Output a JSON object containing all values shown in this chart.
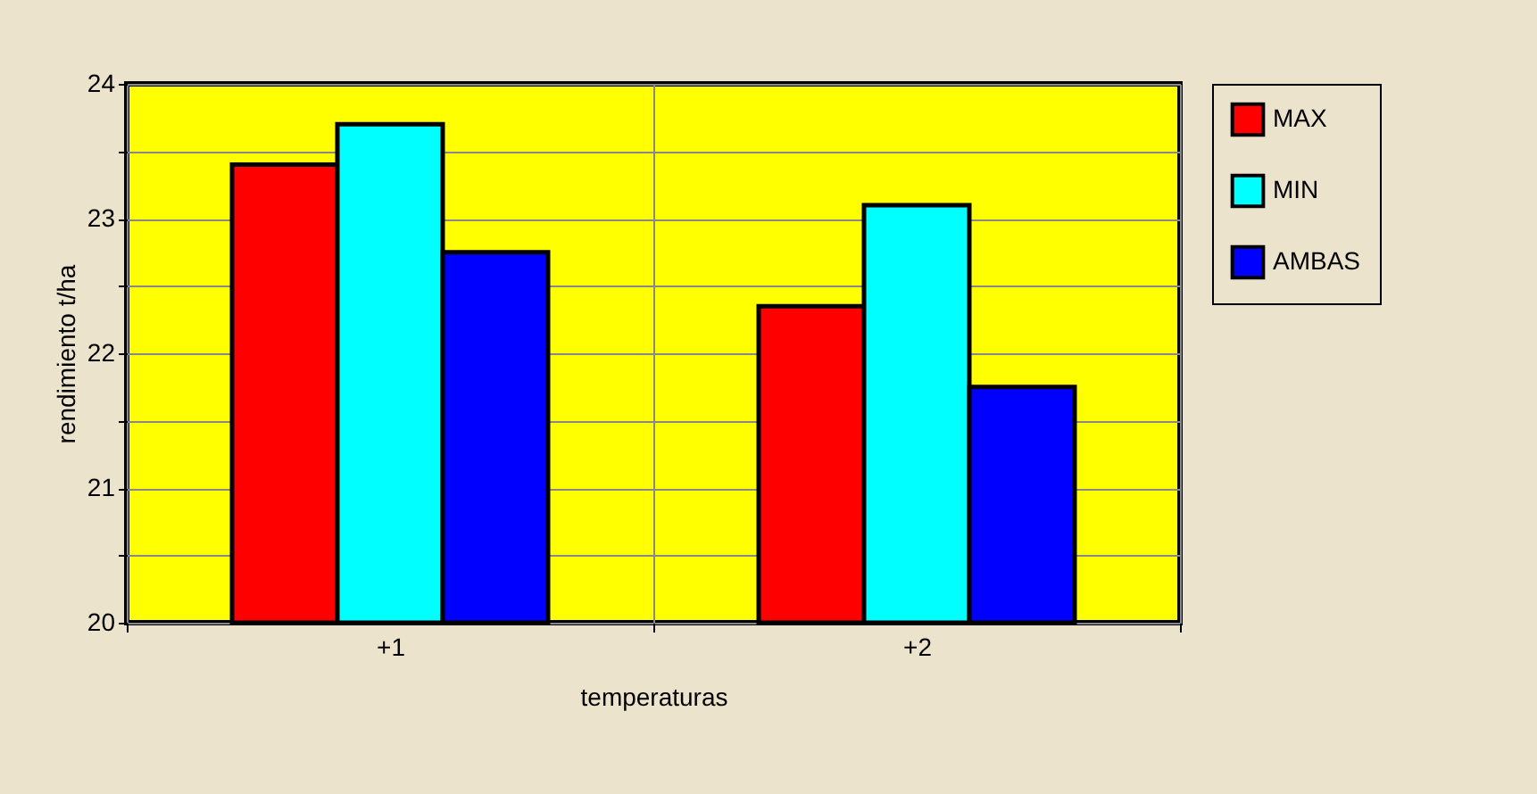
{
  "chart_data": {
    "type": "bar",
    "xlabel": "temperaturas",
    "ylabel": "rendimiento t/ha",
    "categories": [
      "+1",
      "+2"
    ],
    "series": [
      {
        "name": "MAX",
        "color": "#ff0000",
        "values": [
          23.4,
          22.35
        ]
      },
      {
        "name": "MIN",
        "color": "#00ffff",
        "values": [
          23.7,
          23.1
        ]
      },
      {
        "name": "AMBAS",
        "color": "#0000ff",
        "values": [
          22.75,
          21.75
        ]
      }
    ],
    "ylim": [
      20,
      24
    ],
    "yticks": [
      20,
      {
        "value": 20.5,
        "label": null
      },
      21,
      {
        "value": 21.5,
        "label": null
      },
      22,
      {
        "value": 22.5,
        "label": null
      },
      23,
      {
        "value": 23.5,
        "label": null
      },
      24
    ],
    "grid": true,
    "legend": "right"
  }
}
